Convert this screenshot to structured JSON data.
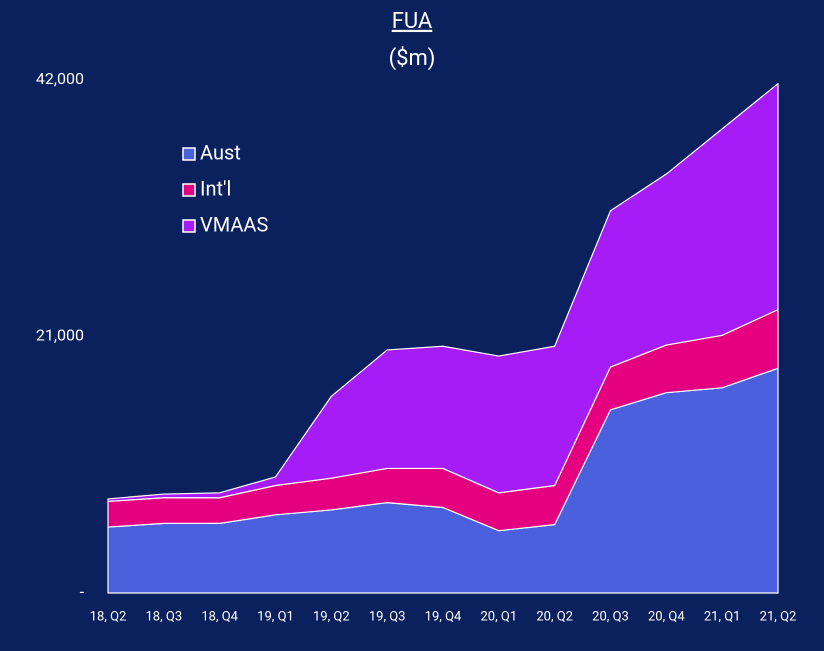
{
  "chart_data": {
    "type": "stacked_area",
    "title": "FUA",
    "subtitle": "($m)",
    "categories": [
      "18, Q2",
      "18, Q3",
      "18, Q4",
      "19, Q1",
      "19, Q2",
      "19, Q3",
      "19, Q4",
      "20, Q1",
      "20, Q2",
      "20, Q3",
      "20, Q4",
      "21, Q1",
      "21, Q2"
    ],
    "series": [
      {
        "name": "Aust",
        "color": "#4a60dc",
        "values": [
          5400,
          5700,
          5700,
          6400,
          6800,
          7400,
          7000,
          5100,
          5600,
          15000,
          16400,
          16800,
          18400
        ]
      },
      {
        "name": "Int'l",
        "color": "#e4007f",
        "values": [
          2100,
          2100,
          2100,
          2400,
          2600,
          2800,
          3200,
          3100,
          3200,
          3500,
          3900,
          4300,
          4800
        ]
      },
      {
        "name": "VMAAS",
        "color": "#a61cf7",
        "values": [
          200,
          300,
          400,
          700,
          6700,
          9700,
          10000,
          11200,
          11400,
          12800,
          14000,
          16900,
          18500
        ]
      }
    ],
    "ylim": [
      0,
      42000
    ],
    "yticks": [
      {
        "value": 0,
        "label": "-"
      },
      {
        "value": 21000,
        "label": "21,000"
      },
      {
        "value": 42000,
        "label": "42,000"
      }
    ],
    "legend": "upper left",
    "grid": false
  }
}
